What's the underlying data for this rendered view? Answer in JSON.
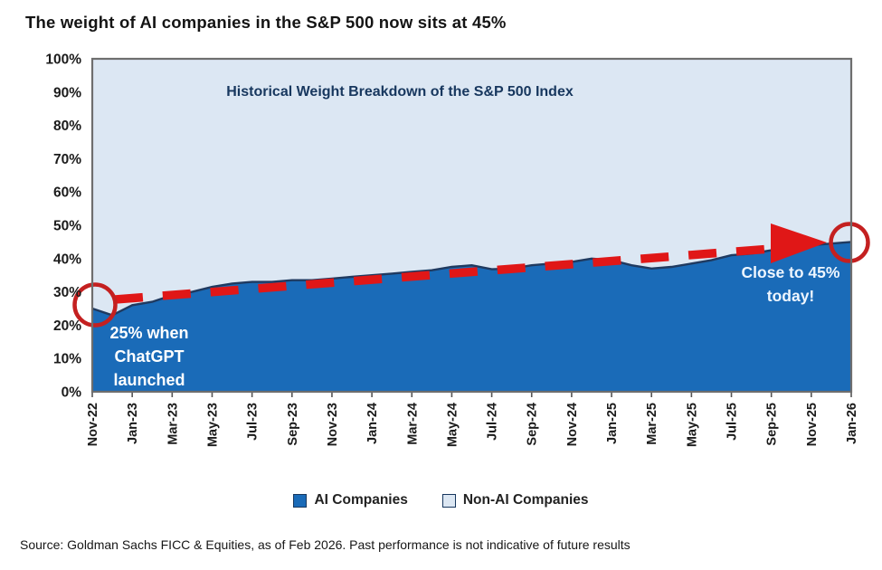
{
  "page": {
    "title": "The weight of AI companies in the S&P 500 now sits at 45%",
    "source": "Source: Goldman Sachs FICC & Equities, as of Feb 2026. Past performance is not indicative of future results"
  },
  "chart_data": {
    "type": "area",
    "title": "Historical Weight Breakdown of the S&P 500 Index",
    "stacked_to_percent": 100,
    "ylim": [
      0,
      100
    ],
    "grid": "off",
    "legend_position": "bottom-center",
    "y_ticks": [
      "100%",
      "90%",
      "80%",
      "70%",
      "60%",
      "50%",
      "40%",
      "30%",
      "20%",
      "10%",
      "0%"
    ],
    "x_tick_labels": [
      "Nov-22",
      "Jan-23",
      "Mar-23",
      "May-23",
      "Jul-23",
      "Sep-23",
      "Nov-23",
      "Jan-24",
      "Mar-24",
      "May-24",
      "Jul-24",
      "Sep-24",
      "Nov-24",
      "Jan-25",
      "Mar-25",
      "May-25",
      "Jul-25",
      "Sep-25",
      "Nov-25",
      "Jan-26"
    ],
    "series": [
      {
        "name": "AI Companies",
        "color": "#1a6bb8",
        "edge_color": "#1f3a60",
        "x": [
          "Nov-22",
          "Dec-22",
          "Jan-23",
          "Feb-23",
          "Mar-23",
          "Apr-23",
          "May-23",
          "Jun-23",
          "Jul-23",
          "Aug-23",
          "Sep-23",
          "Oct-23",
          "Nov-23",
          "Dec-23",
          "Jan-24",
          "Feb-24",
          "Mar-24",
          "Apr-24",
          "May-24",
          "Jun-24",
          "Jul-24",
          "Aug-24",
          "Sep-24",
          "Oct-24",
          "Nov-24",
          "Dec-24",
          "Jan-25",
          "Feb-25",
          "Mar-25",
          "Apr-25",
          "May-25",
          "Jun-25",
          "Jul-25",
          "Aug-25",
          "Sep-25",
          "Oct-25",
          "Nov-25",
          "Dec-25",
          "Jan-26"
        ],
        "values": [
          25,
          23,
          26,
          27,
          29,
          30,
          31.5,
          32.5,
          33,
          33,
          33.5,
          33.5,
          34,
          34.5,
          35,
          35.5,
          36,
          36.5,
          37.5,
          38,
          36.8,
          37,
          38,
          38.5,
          39,
          40,
          39.5,
          38,
          37,
          37.5,
          38.5,
          39.5,
          41,
          41.5,
          42.5,
          43.5,
          44,
          44.5,
          45
        ]
      },
      {
        "name": "Non-AI Companies",
        "color": "#dce7f3",
        "values": "complement-to-100"
      }
    ],
    "legend": [
      {
        "label": "AI Companies",
        "color": "#1a6bb8"
      },
      {
        "label": "Non-AI Companies",
        "color": "#dce7f3"
      }
    ],
    "annotations": [
      {
        "id": "chatgpt-launch",
        "lines": [
          "25% when",
          "ChatGPT",
          "launched"
        ],
        "color": "#ffffff"
      },
      {
        "id": "today",
        "lines": [
          "Close to 45%",
          "today!"
        ],
        "color": "#eef6ff"
      }
    ],
    "trend_arrow": {
      "style": "red-dashed-arrow",
      "color": "#e01717",
      "from": {
        "x": "Dec-22",
        "pct": 27.5
      },
      "to": {
        "x": "Dec-25",
        "pct": 45
      }
    },
    "highlight_circles": [
      {
        "at": "Nov-22",
        "value_pct": 25,
        "color": "#c42020"
      },
      {
        "at": "Jan-26",
        "value_pct": 45,
        "color": "#c42020"
      }
    ]
  }
}
